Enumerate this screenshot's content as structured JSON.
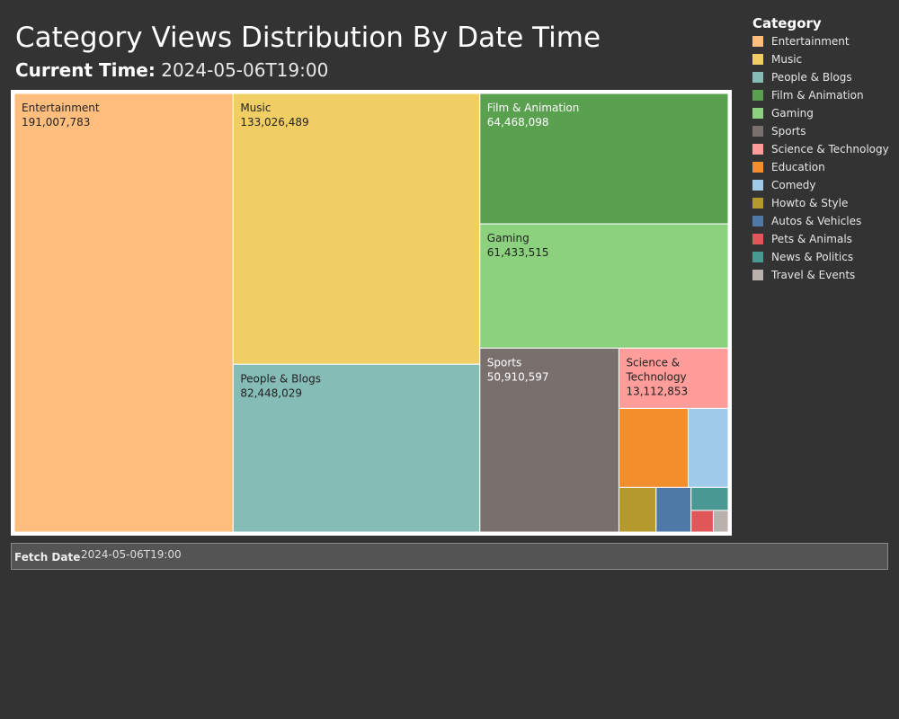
{
  "header": {
    "title": "Category Views Distribution By Date Time",
    "current_time_label": "Current Time:",
    "current_time_value": "2024-05-06T19:00"
  },
  "legend": {
    "title": "Category",
    "items": [
      {
        "label": "Entertainment",
        "color": "#ffbe7d"
      },
      {
        "label": "Music",
        "color": "#f1ce63"
      },
      {
        "label": "People & Blogs",
        "color": "#86bcb6"
      },
      {
        "label": "Film & Animation",
        "color": "#59a14f"
      },
      {
        "label": "Gaming",
        "color": "#8cd17d"
      },
      {
        "label": "Sports",
        "color": "#79706e"
      },
      {
        "label": "Science & Technology",
        "color": "#ff9d9a"
      },
      {
        "label": "Education",
        "color": "#f28e2b"
      },
      {
        "label": "Comedy",
        "color": "#a0cbe8"
      },
      {
        "label": "Howto & Style",
        "color": "#b6992d"
      },
      {
        "label": "Autos & Vehicles",
        "color": "#4e79a7"
      },
      {
        "label": "Pets & Animals",
        "color": "#e15759"
      },
      {
        "label": "News & Politics",
        "color": "#499894"
      },
      {
        "label": "Travel & Events",
        "color": "#bab0ac"
      }
    ]
  },
  "filter": {
    "label": "Fetch Date",
    "value": "2024-05-06T19:00"
  },
  "chart_data": {
    "type": "treemap",
    "legend_position": "right",
    "items": [
      {
        "category": "Entertainment",
        "value": 191007783,
        "display": "191,007,783",
        "label_lines": [
          "Entertainment"
        ],
        "color": "#ffbe7d"
      },
      {
        "category": "Music",
        "value": 133026489,
        "display": "133,026,489",
        "label_lines": [
          "Music"
        ],
        "color": "#f1ce63"
      },
      {
        "category": "People & Blogs",
        "value": 82448029,
        "display": "82,448,029",
        "label_lines": [
          "People & Blogs"
        ],
        "color": "#86bcb6"
      },
      {
        "category": "Film & Animation",
        "value": 64468098,
        "display": "64,468,098",
        "label_lines": [
          "Film & Animation"
        ],
        "color": "#59a14f"
      },
      {
        "category": "Gaming",
        "value": 61433515,
        "display": "61,433,515",
        "label_lines": [
          "Gaming"
        ],
        "color": "#8cd17d"
      },
      {
        "category": "Sports",
        "value": 50910597,
        "display": "50,910,597",
        "label_lines": [
          "Sports"
        ],
        "color": "#79706e"
      },
      {
        "category": "Science & Technology",
        "value": 13112853,
        "display": "13,112,853",
        "label_lines": [
          "Science &",
          "Technology"
        ],
        "color": "#ff9d9a"
      },
      {
        "category": "Education",
        "value": 10900000,
        "display": "",
        "label_lines": [],
        "color": "#f28e2b"
      },
      {
        "category": "Comedy",
        "value": 6300000,
        "display": "",
        "label_lines": [],
        "color": "#a0cbe8"
      },
      {
        "category": "Howto & Style",
        "value": 3300000,
        "display": "",
        "label_lines": [],
        "color": "#b6992d"
      },
      {
        "category": "Autos & Vehicles",
        "value": 3100000,
        "display": "",
        "label_lines": [],
        "color": "#4e79a7"
      },
      {
        "category": "News & Politics",
        "value": 1700000,
        "display": "",
        "label_lines": [],
        "color": "#499894"
      },
      {
        "category": "Pets & Animals",
        "value": 960000,
        "display": "",
        "label_lines": [],
        "color": "#e15759"
      },
      {
        "category": "Travel & Events",
        "value": 640000,
        "display": "",
        "label_lines": [],
        "color": "#bab0ac"
      }
    ]
  }
}
